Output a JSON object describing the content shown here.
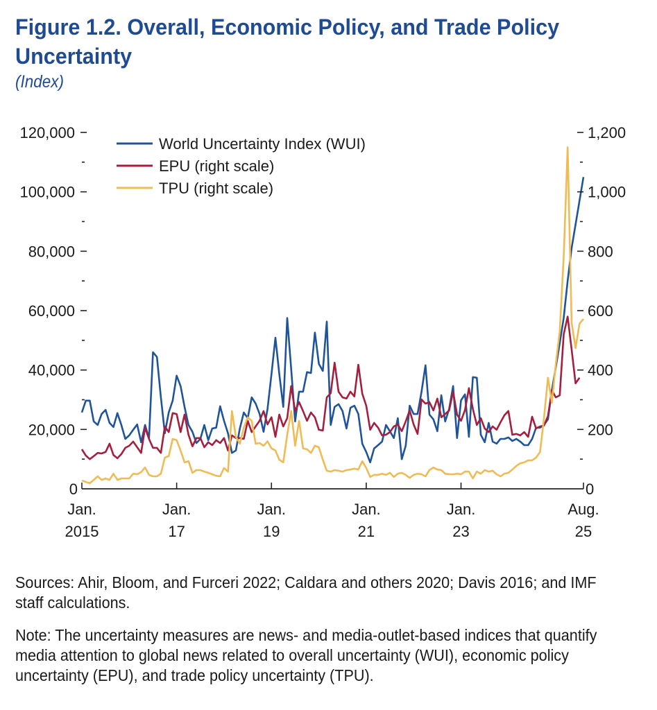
{
  "figure": {
    "title_line1": "Figure 1.2.  Overall, Economic Policy, and Trade Policy",
    "title_line2": "Uncertainty",
    "subtitle": "(Index)"
  },
  "notes": {
    "sources": [
      "Sources: Ahir, Bloom, and Furceri 2022; Caldara and others 2020; Davis 2016; and IMF",
      "staff calculations."
    ],
    "note": [
      "Note: The uncertainty measures are news- and media-outlet-based indices that quantify",
      "media attention to global news related to overall uncertainty (WUI), economic policy",
      "uncertainty (EPU), and trade policy uncertainty (TPU)."
    ]
  },
  "colors": {
    "title": "#1f4b93",
    "axis": "#222222"
  },
  "chart_data": {
    "type": "line",
    "title": "Figure 1.2.  Overall, Economic Policy, and Trade Policy Uncertainty",
    "subtitle": "(Index)",
    "xlabel": "",
    "ylabel": "Index",
    "x_start": "2015-01",
    "x_end": "2025-08",
    "frequency": "monthly",
    "grid": false,
    "x_ticks": [
      {
        "date": "2015-01",
        "line1": "Jan.",
        "line2": "2015"
      },
      {
        "date": "2017-01",
        "line1": "Jan.",
        "line2": "17"
      },
      {
        "date": "2019-01",
        "line1": "Jan.",
        "line2": "19"
      },
      {
        "date": "2021-01",
        "line1": "Jan.",
        "line2": "21"
      },
      {
        "date": "2023-01",
        "line1": "Jan.",
        "line2": "23"
      },
      {
        "date": "2025-08",
        "line1": "Aug.",
        "line2": "25"
      }
    ],
    "y_left": {
      "min": 0,
      "max": 120000,
      "major_ticks": [
        0,
        20000,
        40000,
        60000,
        80000,
        100000,
        120000
      ],
      "labels": [
        "0",
        "20,000",
        "40,000",
        "60,000",
        "80,000",
        "100,000",
        "120,000"
      ],
      "minor_ticks": [
        10000,
        30000,
        50000,
        70000,
        90000,
        110000
      ]
    },
    "y_right": {
      "min": 0,
      "max": 1200,
      "major_ticks": [
        0,
        200,
        400,
        600,
        800,
        1000,
        1200
      ],
      "labels": [
        "0",
        "200",
        "400",
        "600",
        "800",
        "1,000",
        "1,200"
      ],
      "minor_ticks": [
        100,
        300,
        500,
        700,
        900,
        1100
      ]
    },
    "legend": {
      "placement": "top-left",
      "entries": [
        {
          "label": "World Uncertainty Index (WUI)"
        },
        {
          "label": "EPU (right scale)"
        },
        {
          "label": "TPU (right scale)"
        }
      ]
    },
    "series": [
      {
        "name": "World Uncertainty Index (WUI)",
        "short": "WUI",
        "axis": "left",
        "color": "#1f5499",
        "values": [
          25700,
          29700,
          29700,
          22700,
          21500,
          25200,
          26600,
          22200,
          20800,
          25500,
          21500,
          16800,
          18000,
          19900,
          21700,
          15700,
          21500,
          17000,
          46000,
          44400,
          30800,
          18700,
          25700,
          29700,
          38100,
          34600,
          27600,
          21500,
          19200,
          15400,
          16800,
          21500,
          16400,
          20300,
          20600,
          27800,
          22900,
          18700,
          12100,
          12900,
          20300,
          25700,
          23800,
          30800,
          28700,
          25200,
          19200,
          26900,
          38600,
          50900,
          38600,
          27600,
          57500,
          40400,
          22700,
          32700,
          32700,
          39300,
          39000,
          52600,
          42100,
          39700,
          56300,
          21500,
          27600,
          28500,
          26200,
          20300,
          27300,
          28000,
          25200,
          15200,
          12400,
          8900,
          13600,
          14700,
          15900,
          21500,
          19400,
          17100,
          23800,
          10000,
          14500,
          28000,
          25200,
          25200,
          32700,
          41600,
          25000,
          23400,
          19400,
          31500,
          22700,
          26900,
          34600,
          17100,
          29800,
          31800,
          17500,
          37600,
          37400,
          18200,
          15700,
          22200,
          15900,
          15200,
          16800,
          16800,
          17300,
          16100,
          16800,
          15900,
          14700,
          14700,
          16800,
          20600,
          20600,
          21500,
          23400,
          33200,
          40900,
          49000,
          57500,
          70000,
          81000,
          89000,
          97000,
          105000
        ]
      },
      {
        "name": "EPU (right scale)",
        "short": "EPU",
        "axis": "right",
        "color": "#a31f3d",
        "values": [
          133,
          112,
          100,
          110,
          121,
          119,
          124,
          152,
          114,
          103,
          117,
          138,
          145,
          159,
          140,
          121,
          206,
          168,
          138,
          138,
          121,
          210,
          191,
          255,
          252,
          191,
          250,
          182,
          143,
          171,
          171,
          140,
          157,
          147,
          164,
          154,
          171,
          129,
          180,
          171,
          171,
          168,
          229,
          191,
          210,
          229,
          262,
          217,
          241,
          175,
          250,
          210,
          238,
          346,
          262,
          292,
          262,
          229,
          257,
          241,
          199,
          196,
          308,
          322,
          425,
          327,
          308,
          304,
          327,
          311,
          418,
          320,
          280,
          199,
          222,
          206,
          180,
          182,
          191,
          210,
          217,
          194,
          227,
          264,
          217,
          185,
          301,
          287,
          292,
          264,
          304,
          241,
          252,
          264,
          327,
          250,
          229,
          265,
          339,
          269,
          215,
          238,
          203,
          191,
          210,
          199,
          224,
          248,
          262,
          182,
          185,
          180,
          191,
          175,
          243,
          203,
          210,
          213,
          245,
          332,
          308,
          315,
          520,
          580,
          470,
          355,
          374,
          null
        ]
      },
      {
        "name": "TPU (right scale)",
        "short": "TPU",
        "axis": "right",
        "color": "#efbb55",
        "values": [
          28,
          23,
          19,
          30,
          42,
          30,
          35,
          30,
          51,
          30,
          35,
          35,
          35,
          51,
          49,
          56,
          72,
          47,
          42,
          42,
          51,
          105,
          110,
          168,
          164,
          129,
          89,
          93,
          54,
          63,
          63,
          58,
          54,
          49,
          44,
          42,
          70,
          58,
          262,
          175,
          152,
          206,
          241,
          229,
          152,
          154,
          145,
          160,
          136,
          129,
          98,
          89,
          182,
          262,
          145,
          229,
          136,
          133,
          121,
          145,
          140,
          98,
          61,
          58,
          63,
          61,
          58,
          63,
          65,
          68,
          65,
          93,
          70,
          40,
          47,
          47,
          51,
          47,
          54,
          40,
          51,
          54,
          47,
          37,
          47,
          51,
          49,
          42,
          63,
          72,
          65,
          63,
          51,
          49,
          49,
          51,
          49,
          58,
          58,
          35,
          58,
          51,
          63,
          58,
          61,
          49,
          42,
          51,
          54,
          65,
          77,
          86,
          89,
          96,
          96,
          105,
          124,
          238,
          374,
          290,
          420,
          530,
          780,
          1150,
          560,
          474,
          556,
          572
        ]
      }
    ]
  }
}
